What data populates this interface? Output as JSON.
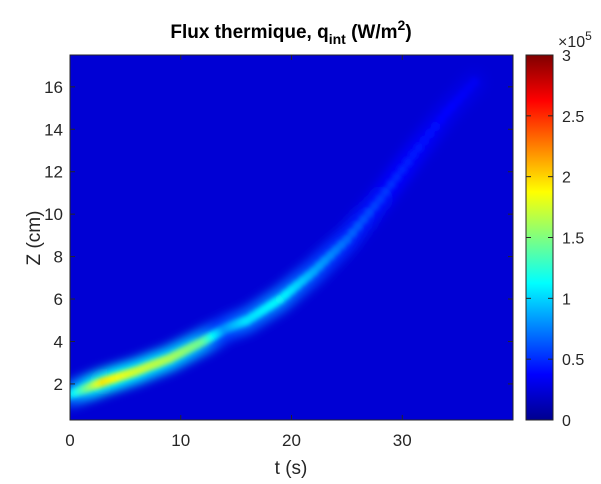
{
  "chart_data": {
    "type": "heatmap",
    "title_main": "Flux thermique, q",
    "title_sub": "int",
    "title_unit_start": " (W/m",
    "title_unit_sup": "2",
    "title_unit_end": ")",
    "xlabel": "t (s)",
    "ylabel": "Z (cm)",
    "xlim": [
      0,
      40
    ],
    "ylim": [
      0.3,
      17.5
    ],
    "x_ticks": [
      0,
      10,
      20,
      30
    ],
    "y_ticks": [
      2,
      4,
      6,
      8,
      10,
      12,
      14,
      16
    ],
    "colorbar": {
      "range": [
        0,
        300000
      ],
      "ticks": [
        0,
        0.5,
        1,
        1.5,
        2,
        2.5,
        3
      ],
      "multiplier_base": "×10",
      "multiplier_exp": "5",
      "colormap": "jet"
    },
    "background_level": 0.25,
    "ridge": [
      {
        "t": 0,
        "z": 1.5,
        "level": 1.0
      },
      {
        "t": 3,
        "z": 2.1,
        "level": 1.95
      },
      {
        "t": 6,
        "z": 2.6,
        "level": 1.75
      },
      {
        "t": 9,
        "z": 3.2,
        "level": 1.65
      },
      {
        "t": 12,
        "z": 4.0,
        "level": 1.45
      },
      {
        "t": 14,
        "z": 4.6,
        "level": 0.8
      },
      {
        "t": 16,
        "z": 5.0,
        "level": 1.05
      },
      {
        "t": 19,
        "z": 6.0,
        "level": 1.15
      },
      {
        "t": 22,
        "z": 7.3,
        "level": 0.9
      },
      {
        "t": 25,
        "z": 8.8,
        "level": 0.7
      },
      {
        "t": 28,
        "z": 10.7,
        "level": 0.55
      },
      {
        "t": 31,
        "z": 12.8,
        "level": 0.45
      },
      {
        "t": 34,
        "z": 14.8,
        "level": 0.38
      },
      {
        "t": 37,
        "z": 16.5,
        "level": 0.33
      }
    ]
  }
}
